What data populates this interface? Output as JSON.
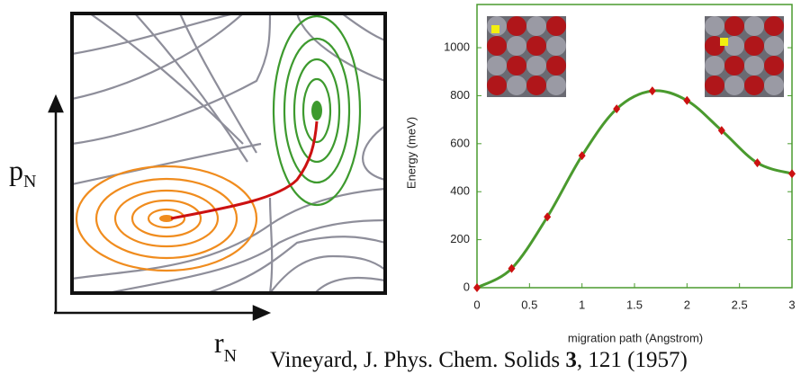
{
  "diagram": {
    "y_label": "p",
    "y_label_sub": "N",
    "x_label": "r",
    "x_label_sub": "N"
  },
  "citation": {
    "text": "Vineyard, J. Phys. Chem. Solids ",
    "volume": "3",
    "rest": ", 121 (1957)"
  },
  "chart_data": {
    "type": "line",
    "xlabel": "migration path (Angstrom)",
    "ylabel": "Energy (meV)",
    "x": [
      0,
      0.33,
      0.67,
      1,
      1.33,
      1.67,
      2,
      2.33,
      2.67,
      3
    ],
    "values": [
      0,
      80,
      295,
      550,
      745,
      820,
      780,
      655,
      520,
      475
    ],
    "color": "#4a9a2e",
    "marker_color": "#cc1111",
    "xlim": [
      0,
      3
    ],
    "ylim": [
      0,
      1180
    ],
    "xticks": [
      0,
      0.5,
      1,
      1.5,
      2,
      2.5,
      3
    ],
    "yticks": [
      0,
      200,
      400,
      600,
      800,
      1000
    ]
  }
}
